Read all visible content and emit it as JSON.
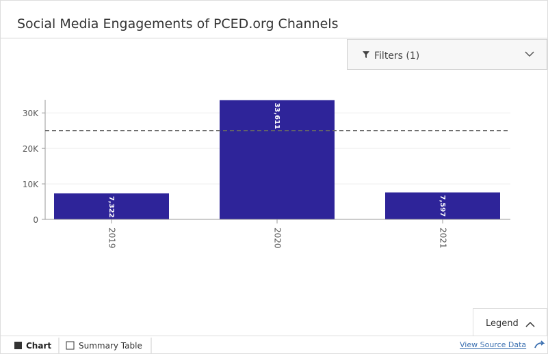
{
  "title": "Social Media Engagements of PCED.org Channels",
  "filters": "Filters (1)",
  "legend_button": "Legend",
  "tabs": [
    "Chart",
    "Summary Table"
  ],
  "source_link": "View Source Data",
  "chart_data": {
    "type": "bar",
    "categories": [
      "2019",
      "2020",
      "2021"
    ],
    "values": [
      7322,
      33611,
      7597
    ],
    "value_labels": [
      "7,322",
      "33,611",
      "7,597"
    ],
    "color": "#2e2499",
    "ylim": [
      0,
      33700
    ],
    "yticks": [
      0,
      {
        "value": 10000,
        "label": "10K"
      },
      {
        "value": 20000,
        "label": "20K"
      },
      {
        "value": 30000,
        "label": "30K"
      }
    ],
    "grid": true,
    "reference_line": 25000
  }
}
